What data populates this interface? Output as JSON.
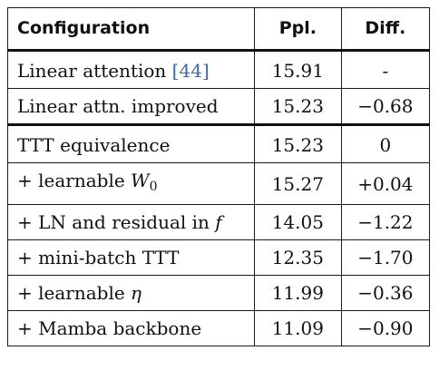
{
  "table": {
    "headers": {
      "configuration": "Configuration",
      "ppl": "Ppl.",
      "diff": "Diff."
    },
    "rows": [
      {
        "configuration": {
          "text": "Linear attention ",
          "cite_open": "[",
          "cite": "44",
          "cite_close": "]"
        },
        "ppl": "15.91",
        "diff": "-"
      },
      {
        "configuration": {
          "text": "Linear attn. improved"
        },
        "ppl": "15.23",
        "diff": "−0.68"
      },
      {
        "configuration": {
          "text": "TTT equivalence"
        },
        "ppl": "15.23",
        "diff": "0"
      },
      {
        "configuration": {
          "text": "+ learnable ",
          "math": "W",
          "sub": "0"
        },
        "ppl": "15.27",
        "diff": "+0.04"
      },
      {
        "configuration": {
          "text": "+ LN and residual in ",
          "math": "f"
        },
        "ppl": "14.05",
        "diff": "−1.22"
      },
      {
        "configuration": {
          "text": "+ mini-batch TTT"
        },
        "ppl": "12.35",
        "diff": "−1.70"
      },
      {
        "configuration": {
          "text": "+ learnable ",
          "math": "η"
        },
        "ppl": "11.99",
        "diff": "−0.36"
      },
      {
        "configuration": {
          "text": "+ Mamba backbone"
        },
        "ppl": "11.09",
        "diff": "−0.90"
      }
    ]
  },
  "colors": {
    "citation_link": "#3b66b0",
    "rule": "#111111"
  }
}
